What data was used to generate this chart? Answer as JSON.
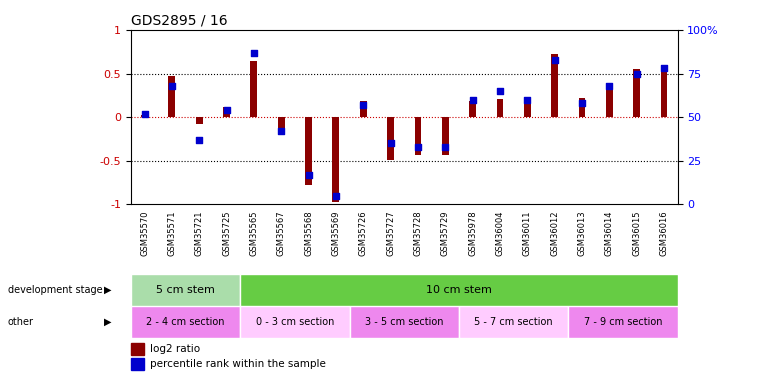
{
  "title": "GDS2895 / 16",
  "samples": [
    "GSM35570",
    "GSM35571",
    "GSM35721",
    "GSM35725",
    "GSM35565",
    "GSM35567",
    "GSM35568",
    "GSM35569",
    "GSM35726",
    "GSM35727",
    "GSM35728",
    "GSM35729",
    "GSM35978",
    "GSM36004",
    "GSM36011",
    "GSM36012",
    "GSM36013",
    "GSM36014",
    "GSM36015",
    "GSM36016"
  ],
  "log2_ratio": [
    0.02,
    0.47,
    -0.08,
    0.12,
    0.65,
    -0.13,
    -0.78,
    -0.97,
    0.18,
    -0.49,
    -0.43,
    -0.43,
    0.18,
    0.21,
    0.23,
    0.73,
    0.22,
    0.38,
    0.55,
    0.55
  ],
  "percentile": [
    52,
    68,
    37,
    54,
    87,
    42,
    17,
    5,
    57,
    35,
    33,
    33,
    60,
    65,
    60,
    83,
    58,
    68,
    75,
    78
  ],
  "ylim_left": [
    -1,
    1
  ],
  "ylim_right": [
    0,
    100
  ],
  "yticks_left": [
    -1,
    -0.5,
    0,
    0.5,
    1
  ],
  "yticks_right": [
    0,
    25,
    50,
    75,
    100
  ],
  "bar_color_red": "#8B0000",
  "bar_color_blue": "#0000CD",
  "dev_stage_groups": [
    {
      "label": "5 cm stem",
      "start": 0,
      "end": 4,
      "color": "#AADDAA"
    },
    {
      "label": "10 cm stem",
      "start": 4,
      "end": 20,
      "color": "#66CC44"
    }
  ],
  "other_groups": [
    {
      "label": "2 - 4 cm section",
      "start": 0,
      "end": 4,
      "color": "#EE88EE"
    },
    {
      "label": "0 - 3 cm section",
      "start": 4,
      "end": 8,
      "color": "#FFCCFF"
    },
    {
      "label": "3 - 5 cm section",
      "start": 8,
      "end": 12,
      "color": "#EE88EE"
    },
    {
      "label": "5 - 7 cm section",
      "start": 12,
      "end": 16,
      "color": "#FFCCFF"
    },
    {
      "label": "7 - 9 cm section",
      "start": 16,
      "end": 20,
      "color": "#EE88EE"
    }
  ],
  "legend_items": [
    {
      "label": "log2 ratio",
      "color": "#8B0000"
    },
    {
      "label": "percentile rank within the sample",
      "color": "#0000CD"
    }
  ]
}
